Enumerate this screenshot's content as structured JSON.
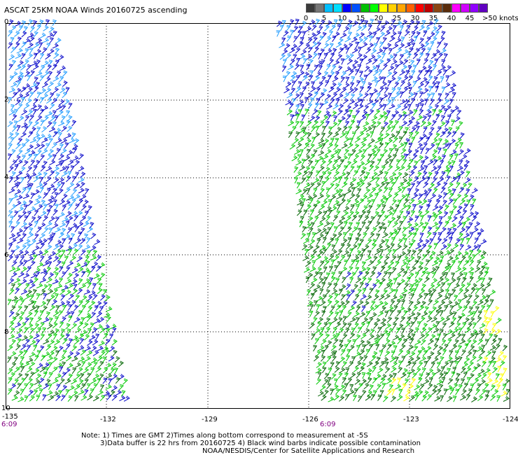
{
  "header": {
    "title": "ASCAT 25KM NOAA Winds 20160725 ascending"
  },
  "scale": {
    "colors": [
      "#3a3a3a",
      "#777777",
      "#00bfff",
      "#00dfff",
      "#0000ff",
      "#0050ff",
      "#00c000",
      "#00ff00",
      "#ffff00",
      "#ffd000",
      "#ffa500",
      "#ff6000",
      "#ff0000",
      "#c00000",
      "#8b4513",
      "#5a2d0c",
      "#ff00ff",
      "#d000ff",
      "#9000ff",
      "#6000c0"
    ],
    "labels": [
      "0",
      "5",
      "10",
      "15",
      "20",
      "25",
      "30",
      "35",
      "40",
      "45",
      ">50 knots"
    ]
  },
  "map": {
    "x_labels": [
      "-135",
      "-132",
      "-129",
      "-126",
      "-123",
      "-124"
    ],
    "y_labels": [
      "0",
      "2",
      "4",
      "6",
      "8",
      "10"
    ],
    "x_range": [
      -135,
      -120
    ],
    "y_range": [
      0,
      -10
    ],
    "time_labels": [
      "6:09",
      "6:09"
    ]
  },
  "notes": {
    "line1": "Note: 1) Times are GMT 2)Times along bottom correspond to measurement at -5S",
    "line2": "3)Data buffer is 22 hrs from 20160725 4) Black wind barbs indicate possible contamination",
    "line3": "NOAA/NESDIS/Center for Satellite Applications and Research"
  },
  "barb_colors": {
    "light_blue": "#1e9bff",
    "blue": "#0000c8",
    "green": "#00c800",
    "dark_green": "#006400",
    "yellow": "#ffff00"
  }
}
